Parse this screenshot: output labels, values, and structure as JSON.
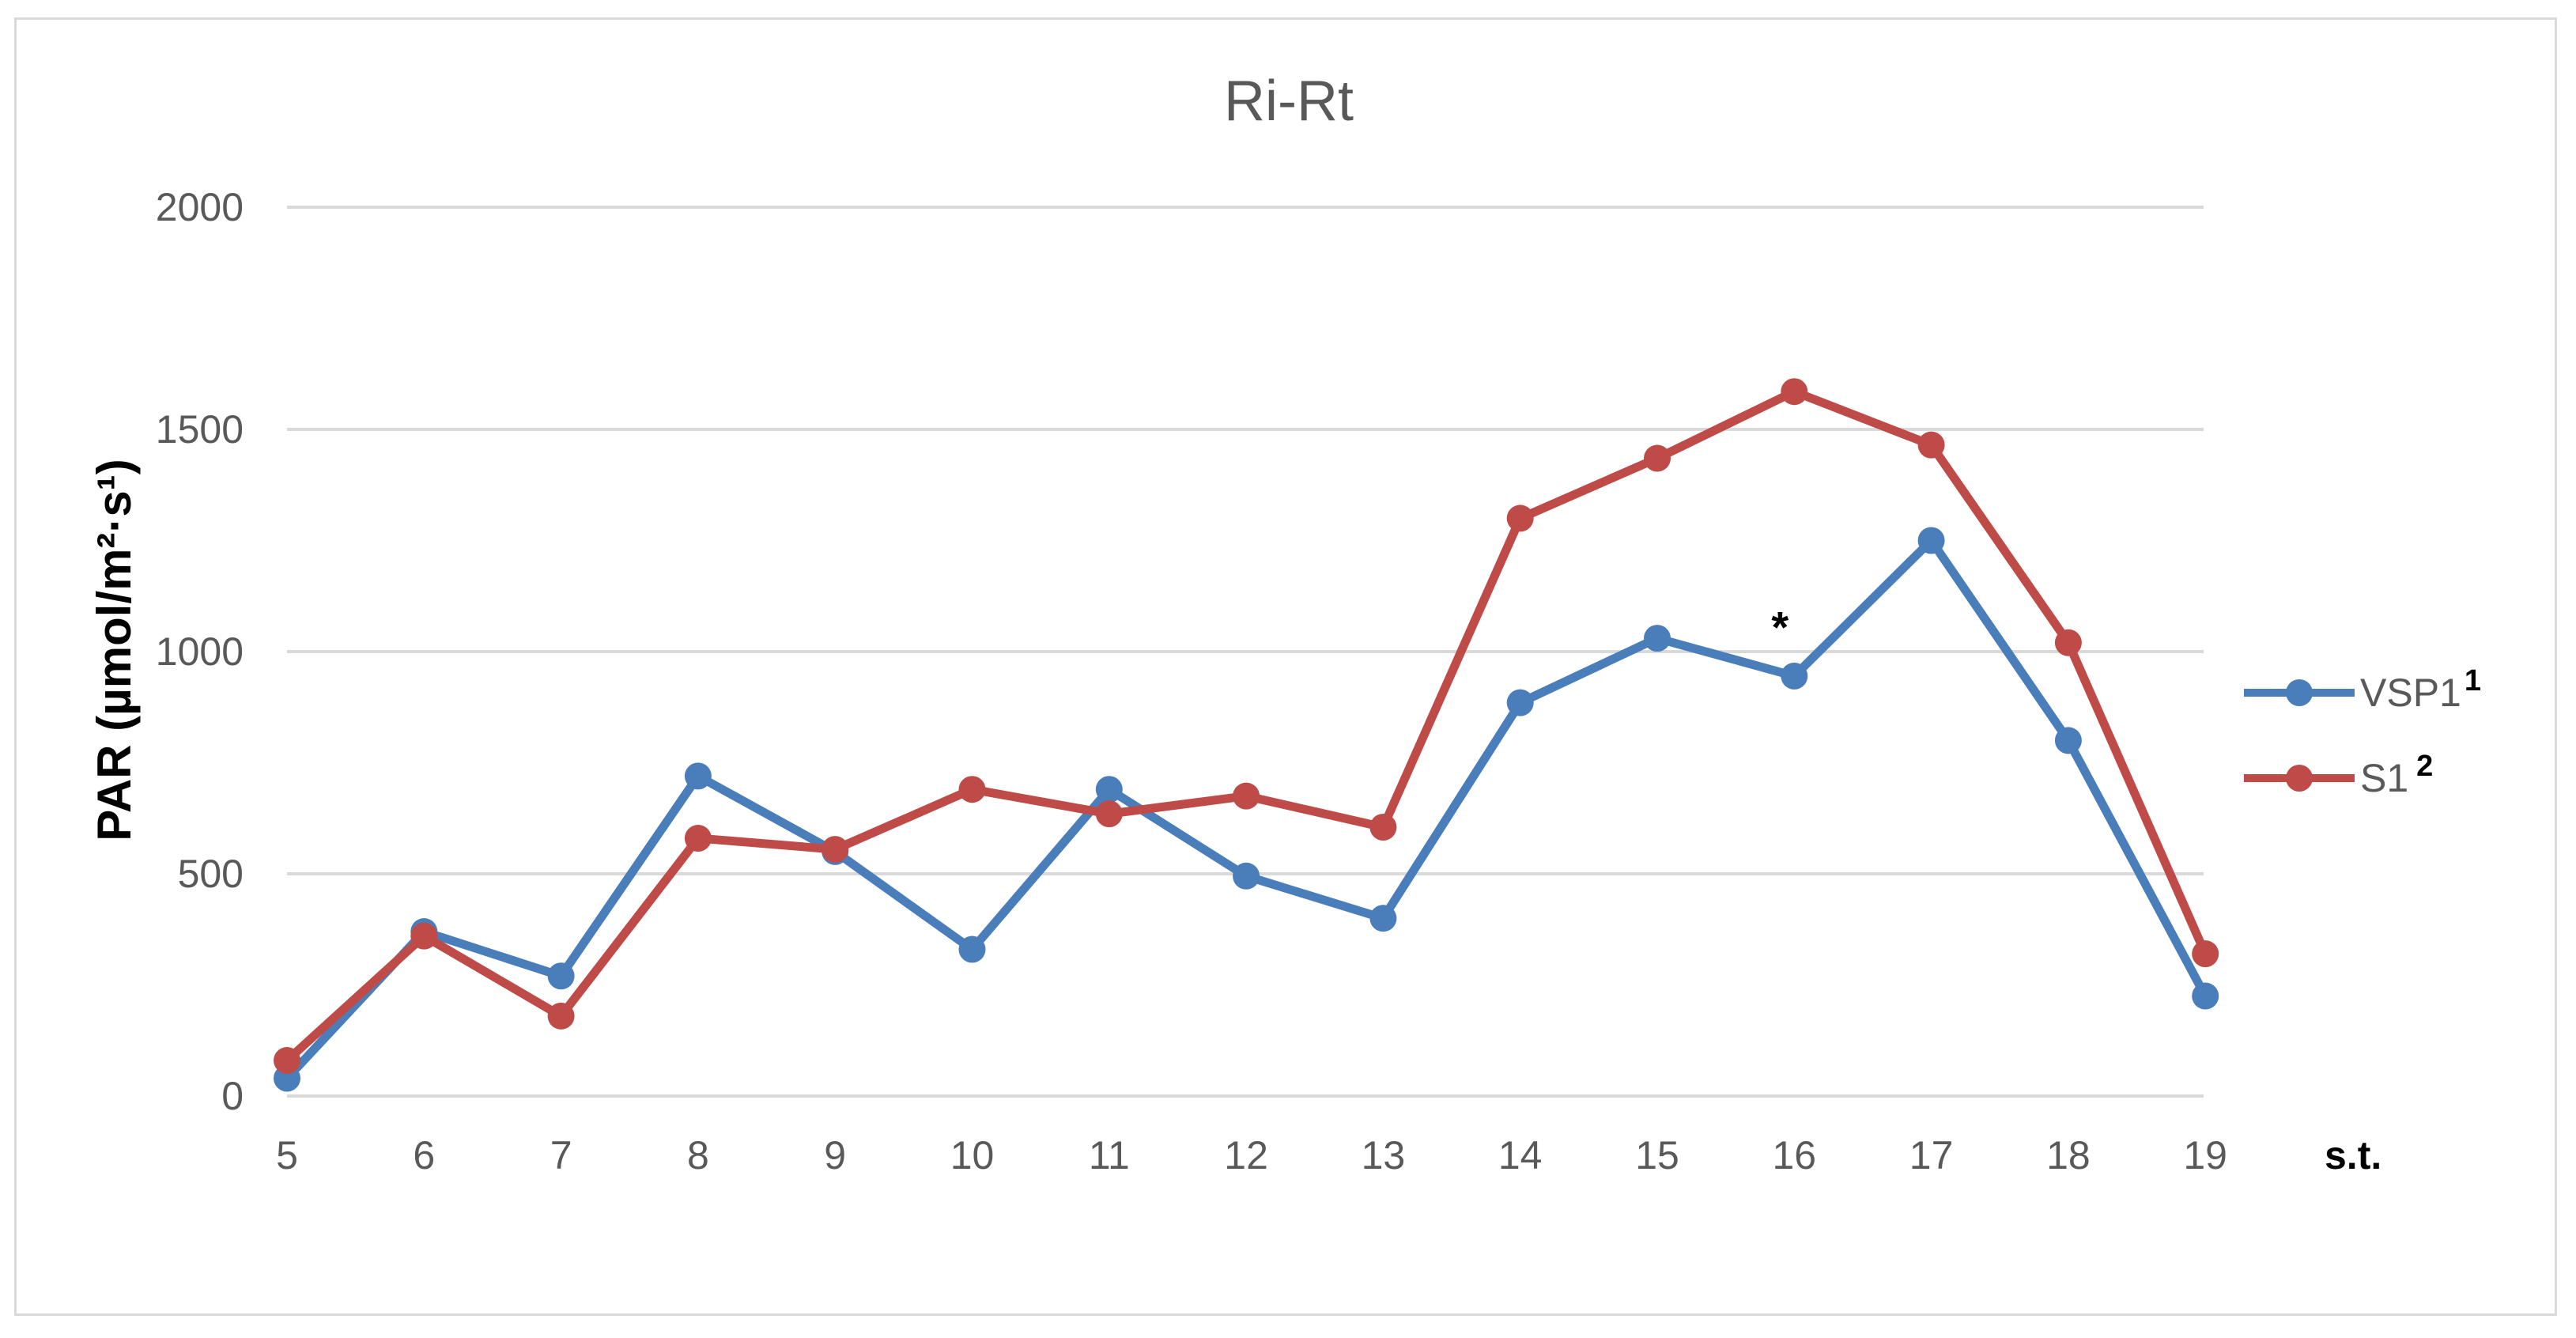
{
  "chart_data": {
    "type": "line",
    "title": "Ri-Rt",
    "ylabel": "PAR (µmol/m²·s¹)",
    "xlabel": "s.t.",
    "categories": [
      "5",
      "6",
      "7",
      "8",
      "9",
      "10",
      "11",
      "12",
      "13",
      "14",
      "15",
      "16",
      "17",
      "18",
      "19"
    ],
    "ylim": [
      0,
      2000
    ],
    "yticks": [
      "0",
      "500",
      "1000",
      "1500",
      "2000"
    ],
    "grid": true,
    "legend_position": "right",
    "series": [
      {
        "name": "VSP1",
        "name_sup": "1",
        "color": "#4a7ebb",
        "values": [
          40,
          370,
          270,
          720,
          550,
          330,
          690,
          495,
          400,
          885,
          1030,
          945,
          1250,
          800,
          225
        ]
      },
      {
        "name": "S1",
        "name_sup": "2",
        "color": "#be4b48",
        "values": [
          80,
          360,
          180,
          580,
          555,
          690,
          635,
          675,
          605,
          1300,
          1435,
          1585,
          1465,
          1020,
          320
        ]
      }
    ],
    "annotations": [
      {
        "text": "*",
        "x": "16",
        "y": 1070
      }
    ]
  }
}
